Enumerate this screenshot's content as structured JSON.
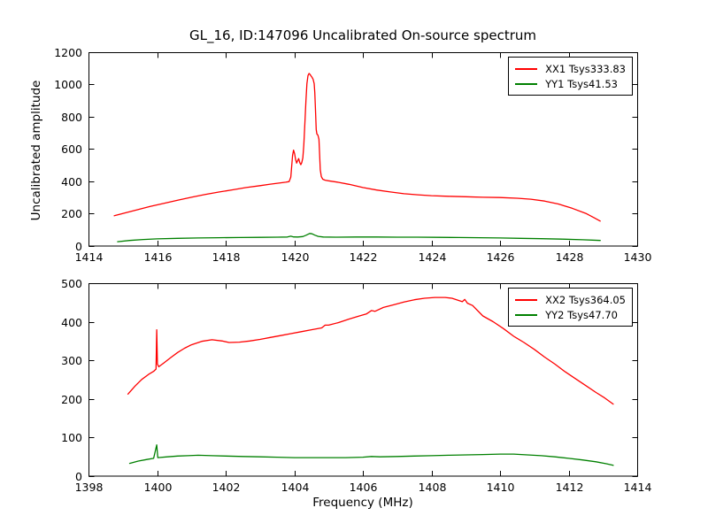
{
  "figure": {
    "title": "GL_16, ID:147096 Uncalibrated On-source spectrum",
    "background": "#ffffff",
    "text_color": "#000000",
    "frame_color": "#000000"
  },
  "chart_data": [
    {
      "type": "line",
      "subplot": "top",
      "xlabel": "",
      "ylabel": "Uncalibrated amplitude",
      "xlim": [
        1414,
        1430
      ],
      "ylim": [
        0,
        1200
      ],
      "xticks": [
        1414,
        1416,
        1418,
        1420,
        1422,
        1424,
        1426,
        1428,
        1430
      ],
      "yticks": [
        0,
        200,
        400,
        600,
        800,
        1000,
        1200
      ],
      "grid": false,
      "legend_position": "upper right",
      "series": [
        {
          "name": "XX1 Tsys333.83",
          "color": "#ff0000",
          "points": [
            [
              1414.75,
              185
            ],
            [
              1415.1,
              205
            ],
            [
              1415.45,
              224
            ],
            [
              1415.8,
              243
            ],
            [
              1416.2,
              262
            ],
            [
              1416.6,
              281
            ],
            [
              1417.0,
              300
            ],
            [
              1417.4,
              317
            ],
            [
              1417.8,
              332
            ],
            [
              1418.2,
              346
            ],
            [
              1418.6,
              360
            ],
            [
              1419.0,
              372
            ],
            [
              1419.3,
              381
            ],
            [
              1419.55,
              388
            ],
            [
              1419.75,
              393
            ],
            [
              1419.85,
              397
            ],
            [
              1419.9,
              425
            ],
            [
              1419.95,
              560
            ],
            [
              1419.98,
              592
            ],
            [
              1420.01,
              570
            ],
            [
              1420.04,
              535
            ],
            [
              1420.07,
              512
            ],
            [
              1420.1,
              528
            ],
            [
              1420.13,
              540
            ],
            [
              1420.16,
              515
            ],
            [
              1420.19,
              502
            ],
            [
              1420.22,
              515
            ],
            [
              1420.25,
              545
            ],
            [
              1420.28,
              625
            ],
            [
              1420.31,
              760
            ],
            [
              1420.34,
              900
            ],
            [
              1420.37,
              1005
            ],
            [
              1420.4,
              1055
            ],
            [
              1420.43,
              1068
            ],
            [
              1420.46,
              1062
            ],
            [
              1420.49,
              1052
            ],
            [
              1420.52,
              1044
            ],
            [
              1420.55,
              1032
            ],
            [
              1420.58,
              1005
            ],
            [
              1420.6,
              950
            ],
            [
              1420.62,
              840
            ],
            [
              1420.64,
              720
            ],
            [
              1420.66,
              692
            ],
            [
              1420.69,
              686
            ],
            [
              1420.72,
              660
            ],
            [
              1420.74,
              560
            ],
            [
              1420.76,
              470
            ],
            [
              1420.79,
              428
            ],
            [
              1420.83,
              412
            ],
            [
              1420.9,
              406
            ],
            [
              1421.0,
              402
            ],
            [
              1421.3,
              392
            ],
            [
              1421.6,
              380
            ],
            [
              1422.0,
              360
            ],
            [
              1422.4,
              345
            ],
            [
              1422.8,
              333
            ],
            [
              1423.2,
              322
            ],
            [
              1423.6,
              315
            ],
            [
              1424.0,
              310
            ],
            [
              1424.5,
              306
            ],
            [
              1425.0,
              303
            ],
            [
              1425.5,
              300
            ],
            [
              1426.0,
              298
            ],
            [
              1426.5,
              294
            ],
            [
              1426.9,
              288
            ],
            [
              1427.3,
              276
            ],
            [
              1427.7,
              258
            ],
            [
              1428.1,
              232
            ],
            [
              1428.5,
              200
            ],
            [
              1428.75,
              172
            ],
            [
              1428.92,
              152
            ]
          ]
        },
        {
          "name": "YY1 Tsys41.53",
          "color": "#008000",
          "points": [
            [
              1414.85,
              24
            ],
            [
              1415.2,
              32
            ],
            [
              1415.6,
              38
            ],
            [
              1416.0,
              42
            ],
            [
              1416.6,
              45
            ],
            [
              1417.2,
              47
            ],
            [
              1417.8,
              49
            ],
            [
              1418.4,
              50
            ],
            [
              1419.0,
              51
            ],
            [
              1419.5,
              52
            ],
            [
              1419.8,
              53
            ],
            [
              1419.9,
              58
            ],
            [
              1419.98,
              54
            ],
            [
              1420.1,
              53
            ],
            [
              1420.25,
              56
            ],
            [
              1420.35,
              65
            ],
            [
              1420.45,
              75
            ],
            [
              1420.52,
              73
            ],
            [
              1420.6,
              65
            ],
            [
              1420.7,
              57
            ],
            [
              1420.85,
              53
            ],
            [
              1421.2,
              52
            ],
            [
              1421.8,
              53
            ],
            [
              1422.4,
              53
            ],
            [
              1423.0,
              52
            ],
            [
              1423.6,
              52
            ],
            [
              1424.2,
              51
            ],
            [
              1424.8,
              50
            ],
            [
              1425.4,
              49
            ],
            [
              1426.0,
              47
            ],
            [
              1426.6,
              45
            ],
            [
              1427.2,
              43
            ],
            [
              1427.8,
              40
            ],
            [
              1428.4,
              36
            ],
            [
              1428.92,
              32
            ]
          ]
        }
      ]
    },
    {
      "type": "line",
      "subplot": "bottom",
      "xlabel": "Frequency (MHz)",
      "ylabel": "",
      "xlim": [
        1398,
        1414
      ],
      "ylim": [
        0,
        500
      ],
      "xticks": [
        1398,
        1400,
        1402,
        1404,
        1406,
        1408,
        1410,
        1412,
        1414
      ],
      "yticks": [
        0,
        100,
        200,
        300,
        400,
        500
      ],
      "grid": false,
      "legend_position": "upper right",
      "series": [
        {
          "name": "XX2 Tsys364.05",
          "color": "#ff0000",
          "points": [
            [
              1399.15,
              212
            ],
            [
              1399.35,
              232
            ],
            [
              1399.55,
              250
            ],
            [
              1399.75,
              263
            ],
            [
              1399.9,
              271
            ],
            [
              1399.97,
              277
            ],
            [
              1399.99,
              379
            ],
            [
              1400.01,
              290
            ],
            [
              1400.05,
              283
            ],
            [
              1400.2,
              293
            ],
            [
              1400.4,
              307
            ],
            [
              1400.6,
              320
            ],
            [
              1400.8,
              331
            ],
            [
              1401.0,
              340
            ],
            [
              1401.3,
              349
            ],
            [
              1401.6,
              353
            ],
            [
              1401.9,
              350
            ],
            [
              1402.1,
              346
            ],
            [
              1402.4,
              347
            ],
            [
              1402.7,
              350
            ],
            [
              1403.0,
              354
            ],
            [
              1403.3,
              359
            ],
            [
              1403.6,
              364
            ],
            [
              1403.9,
              369
            ],
            [
              1404.2,
              374
            ],
            [
              1404.5,
              379
            ],
            [
              1404.8,
              384
            ],
            [
              1404.9,
              391
            ],
            [
              1405.0,
              391
            ],
            [
              1405.3,
              398
            ],
            [
              1405.6,
              407
            ],
            [
              1405.9,
              415
            ],
            [
              1406.1,
              420
            ],
            [
              1406.25,
              429
            ],
            [
              1406.35,
              427
            ],
            [
              1406.6,
              437
            ],
            [
              1406.9,
              444
            ],
            [
              1407.2,
              451
            ],
            [
              1407.5,
              457
            ],
            [
              1407.8,
              461
            ],
            [
              1408.1,
              463
            ],
            [
              1408.4,
              463
            ],
            [
              1408.6,
              461
            ],
            [
              1408.9,
              452
            ],
            [
              1408.97,
              458
            ],
            [
              1409.05,
              448
            ],
            [
              1409.2,
              442
            ],
            [
              1409.5,
              415
            ],
            [
              1409.8,
              400
            ],
            [
              1410.1,
              382
            ],
            [
              1410.4,
              362
            ],
            [
              1410.7,
              346
            ],
            [
              1411.0,
              328
            ],
            [
              1411.3,
              308
            ],
            [
              1411.6,
              290
            ],
            [
              1411.9,
              270
            ],
            [
              1412.2,
              252
            ],
            [
              1412.5,
              234
            ],
            [
              1412.8,
              216
            ],
            [
              1413.05,
              202
            ],
            [
              1413.3,
              186
            ]
          ]
        },
        {
          "name": "YY2 Tsys47.70",
          "color": "#008000",
          "points": [
            [
              1399.2,
              32
            ],
            [
              1399.45,
              38
            ],
            [
              1399.7,
              42
            ],
            [
              1399.9,
              45
            ],
            [
              1399.99,
              80
            ],
            [
              1400.02,
              47
            ],
            [
              1400.3,
              49
            ],
            [
              1400.6,
              51
            ],
            [
              1400.9,
              52
            ],
            [
              1401.2,
              53
            ],
            [
              1401.6,
              52
            ],
            [
              1402.0,
              51
            ],
            [
              1402.5,
              50
            ],
            [
              1403.0,
              49
            ],
            [
              1403.5,
              48
            ],
            [
              1404.0,
              47
            ],
            [
              1404.5,
              47
            ],
            [
              1405.0,
              47
            ],
            [
              1405.5,
              47
            ],
            [
              1406.0,
              48
            ],
            [
              1406.25,
              50
            ],
            [
              1406.5,
              49
            ],
            [
              1407.0,
              50
            ],
            [
              1407.5,
              51
            ],
            [
              1408.0,
              52
            ],
            [
              1408.5,
              53
            ],
            [
              1409.0,
              54
            ],
            [
              1409.5,
              55
            ],
            [
              1410.0,
              56
            ],
            [
              1410.4,
              56
            ],
            [
              1410.8,
              54
            ],
            [
              1411.2,
              52
            ],
            [
              1411.6,
              49
            ],
            [
              1412.0,
              45
            ],
            [
              1412.4,
              41
            ],
            [
              1412.8,
              36
            ],
            [
              1413.1,
              31
            ],
            [
              1413.3,
              27
            ]
          ]
        }
      ]
    }
  ]
}
